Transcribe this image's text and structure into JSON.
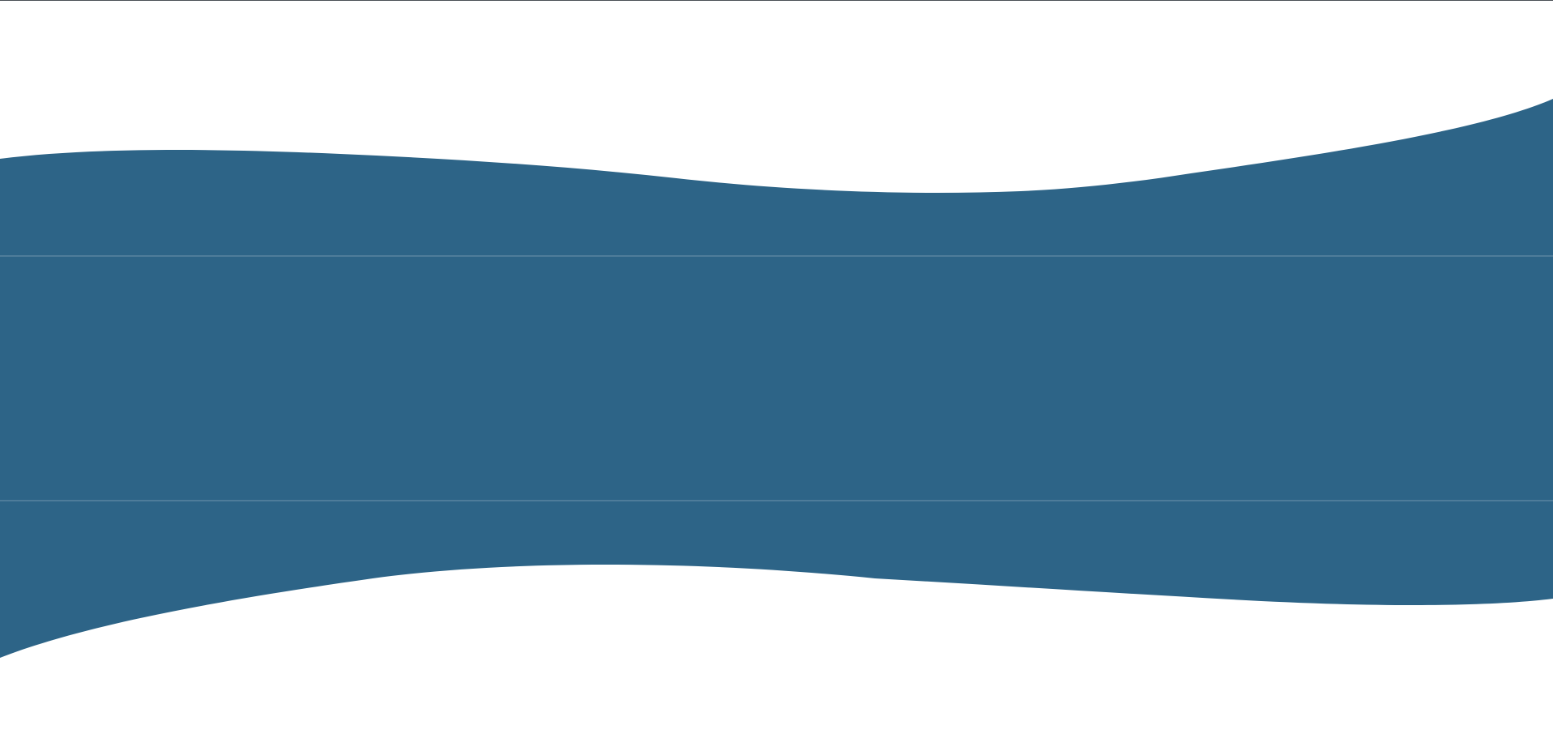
{
  "colors": {
    "fill": "#2d6487",
    "divider": "#6f93ad",
    "top_rule": "#4a4f55",
    "background": "#ffffff"
  }
}
